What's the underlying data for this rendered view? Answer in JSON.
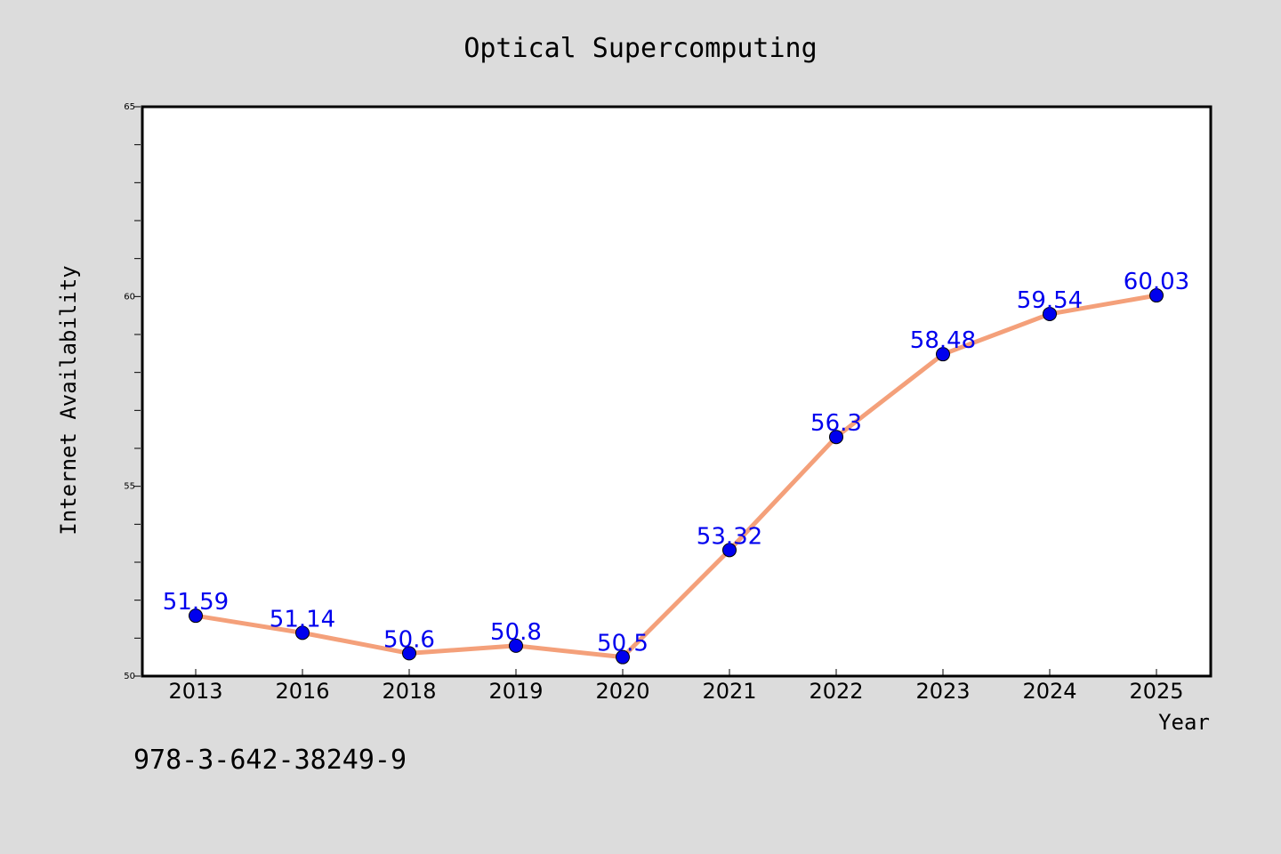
{
  "footer_text": "978-3-642-38249-9",
  "colors": {
    "background": "#dcdcdc",
    "plot_background": "#ffffff",
    "line": "#f4a07a",
    "marker": "#0000ee",
    "data_label": "#0000ee"
  },
  "chart_data": {
    "type": "line",
    "title": "Optical Supercomputing",
    "xlabel": "Year",
    "ylabel": "Internet Availability",
    "categories": [
      "2013",
      "2016",
      "2018",
      "2019",
      "2020",
      "2021",
      "2022",
      "2023",
      "2024",
      "2025"
    ],
    "series": [
      {
        "values": [
          51.59,
          51.14,
          50.6,
          50.8,
          50.5,
          53.32,
          56.3,
          58.48,
          59.54,
          60.03
        ],
        "labels": [
          "51.59",
          "51.14",
          "50.6",
          "50.8",
          "50.5",
          "53.32",
          "56.3",
          "58.48",
          "59.54",
          "60.03"
        ]
      }
    ],
    "ylim": [
      50,
      65
    ],
    "yticks": [
      "50",
      "55",
      "60",
      "65"
    ],
    "grid": false,
    "legend": "none"
  }
}
